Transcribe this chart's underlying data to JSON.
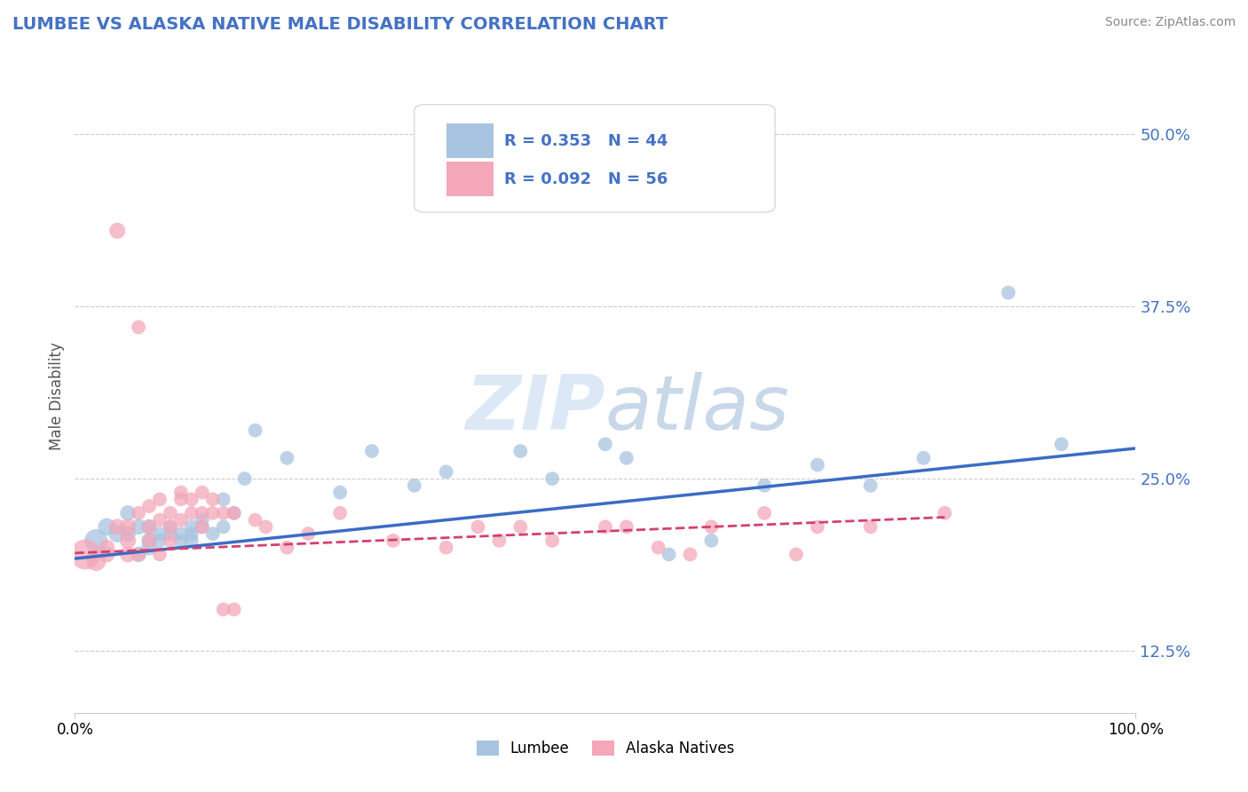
{
  "title": "LUMBEE VS ALASKA NATIVE MALE DISABILITY CORRELATION CHART",
  "source": "Source: ZipAtlas.com",
  "ylabel": "Male Disability",
  "lumbee_color": "#a8c4e0",
  "alaska_color": "#f4a7b9",
  "lumbee_line_color": "#3a6cc4",
  "alaska_line_color": "#d44070",
  "lumbee_R": 0.353,
  "lumbee_N": 44,
  "alaska_R": 0.092,
  "alaska_N": 56,
  "xlim": [
    0.0,
    1.0
  ],
  "ylim": [
    0.08,
    0.54
  ],
  "ytick_positions": [
    0.125,
    0.25,
    0.375,
    0.5
  ],
  "ytick_labels": [
    "12.5%",
    "25.0%",
    "37.5%",
    "50.0%"
  ],
  "lumbee_scatter": [
    [
      0.02,
      0.205
    ],
    [
      0.03,
      0.215
    ],
    [
      0.04,
      0.21
    ],
    [
      0.05,
      0.21
    ],
    [
      0.05,
      0.225
    ],
    [
      0.06,
      0.195
    ],
    [
      0.06,
      0.215
    ],
    [
      0.07,
      0.205
    ],
    [
      0.07,
      0.215
    ],
    [
      0.07,
      0.2
    ],
    [
      0.08,
      0.21
    ],
    [
      0.08,
      0.205
    ],
    [
      0.09,
      0.21
    ],
    [
      0.09,
      0.215
    ],
    [
      0.1,
      0.21
    ],
    [
      0.1,
      0.205
    ],
    [
      0.11,
      0.205
    ],
    [
      0.11,
      0.21
    ],
    [
      0.11,
      0.215
    ],
    [
      0.12,
      0.215
    ],
    [
      0.12,
      0.22
    ],
    [
      0.13,
      0.21
    ],
    [
      0.14,
      0.215
    ],
    [
      0.14,
      0.235
    ],
    [
      0.15,
      0.225
    ],
    [
      0.16,
      0.25
    ],
    [
      0.17,
      0.285
    ],
    [
      0.2,
      0.265
    ],
    [
      0.25,
      0.24
    ],
    [
      0.28,
      0.27
    ],
    [
      0.32,
      0.245
    ],
    [
      0.35,
      0.255
    ],
    [
      0.42,
      0.27
    ],
    [
      0.45,
      0.25
    ],
    [
      0.5,
      0.275
    ],
    [
      0.52,
      0.265
    ],
    [
      0.56,
      0.195
    ],
    [
      0.6,
      0.205
    ],
    [
      0.65,
      0.245
    ],
    [
      0.7,
      0.26
    ],
    [
      0.75,
      0.245
    ],
    [
      0.8,
      0.265
    ],
    [
      0.88,
      0.385
    ],
    [
      0.93,
      0.275
    ]
  ],
  "alaska_scatter": [
    [
      0.01,
      0.195
    ],
    [
      0.02,
      0.19
    ],
    [
      0.03,
      0.195
    ],
    [
      0.03,
      0.2
    ],
    [
      0.04,
      0.43
    ],
    [
      0.04,
      0.215
    ],
    [
      0.05,
      0.195
    ],
    [
      0.05,
      0.205
    ],
    [
      0.05,
      0.215
    ],
    [
      0.06,
      0.36
    ],
    [
      0.06,
      0.225
    ],
    [
      0.06,
      0.195
    ],
    [
      0.07,
      0.215
    ],
    [
      0.07,
      0.23
    ],
    [
      0.07,
      0.205
    ],
    [
      0.08,
      0.22
    ],
    [
      0.08,
      0.235
    ],
    [
      0.08,
      0.195
    ],
    [
      0.09,
      0.205
    ],
    [
      0.09,
      0.225
    ],
    [
      0.09,
      0.215
    ],
    [
      0.1,
      0.22
    ],
    [
      0.1,
      0.235
    ],
    [
      0.1,
      0.24
    ],
    [
      0.11,
      0.235
    ],
    [
      0.11,
      0.225
    ],
    [
      0.12,
      0.225
    ],
    [
      0.12,
      0.215
    ],
    [
      0.12,
      0.24
    ],
    [
      0.13,
      0.235
    ],
    [
      0.13,
      0.225
    ],
    [
      0.14,
      0.155
    ],
    [
      0.14,
      0.225
    ],
    [
      0.15,
      0.225
    ],
    [
      0.15,
      0.155
    ],
    [
      0.17,
      0.22
    ],
    [
      0.18,
      0.215
    ],
    [
      0.2,
      0.2
    ],
    [
      0.22,
      0.21
    ],
    [
      0.25,
      0.225
    ],
    [
      0.3,
      0.205
    ],
    [
      0.35,
      0.2
    ],
    [
      0.38,
      0.215
    ],
    [
      0.4,
      0.205
    ],
    [
      0.42,
      0.215
    ],
    [
      0.45,
      0.205
    ],
    [
      0.5,
      0.215
    ],
    [
      0.52,
      0.215
    ],
    [
      0.55,
      0.2
    ],
    [
      0.58,
      0.195
    ],
    [
      0.6,
      0.215
    ],
    [
      0.65,
      0.225
    ],
    [
      0.68,
      0.195
    ],
    [
      0.7,
      0.215
    ],
    [
      0.75,
      0.215
    ],
    [
      0.82,
      0.225
    ]
  ],
  "lumbee_line": [
    [
      0.0,
      0.192
    ],
    [
      1.0,
      0.272
    ]
  ],
  "alaska_line": [
    [
      0.0,
      0.196
    ],
    [
      0.82,
      0.222
    ]
  ],
  "grid_color": "#cccccc",
  "background_color": "#ffffff",
  "title_color": "#4472c4",
  "source_color": "#888888"
}
